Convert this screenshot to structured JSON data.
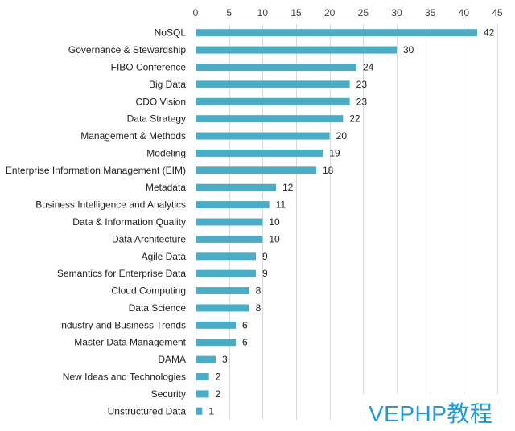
{
  "chart_data": {
    "type": "bar",
    "orientation": "horizontal",
    "categories": [
      "NoSQL",
      "Governance & Stewardship",
      "FIBO Conference",
      "Big Data",
      "CDO Vision",
      "Data Strategy",
      "Management & Methods",
      "Modeling",
      "Enterprise Information Management (EIM)",
      "Metadata",
      "Business Intelligence and Analytics",
      "Data & Information Quality",
      "Data Architecture",
      "Agile Data",
      "Semantics for Enterprise Data",
      "Cloud Computing",
      "Data Science",
      "Industry and Business Trends",
      "Master Data Management",
      "DAMA",
      "New Ideas and Technologies",
      "Security",
      "Unstructured Data"
    ],
    "values": [
      42,
      30,
      24,
      23,
      23,
      22,
      20,
      19,
      18,
      12,
      11,
      10,
      10,
      9,
      9,
      8,
      8,
      6,
      6,
      3,
      2,
      2,
      1
    ],
    "xlim": [
      0,
      45
    ],
    "xticks": [
      0,
      5,
      10,
      15,
      20,
      25,
      30,
      35,
      40,
      45
    ],
    "x_axis_position": "top",
    "grid": true,
    "legend": "none",
    "bar_color": "#4BACC6",
    "grid_color": "#d9d9d9"
  },
  "watermark": {
    "text": "VEPHP教程",
    "color": "#1e9ad6"
  }
}
